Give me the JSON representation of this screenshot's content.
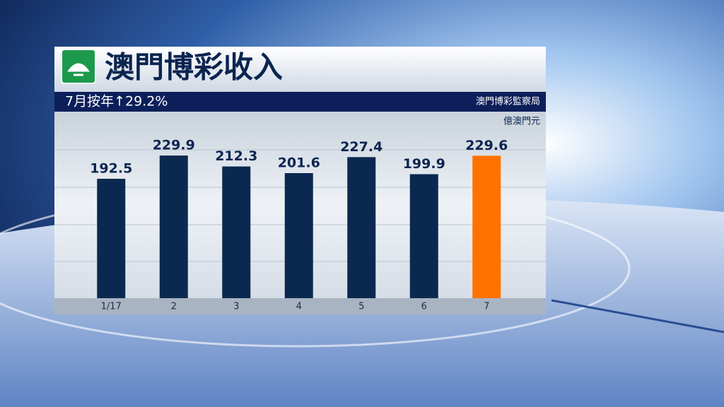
{
  "chart_data": {
    "type": "bar",
    "title": "澳門博彩收入",
    "subtitle": "7月按年↑29.2%",
    "source": "澳門博彩監察局",
    "unit": "億澳門元",
    "categories": [
      "1/17",
      "2",
      "3",
      "4",
      "5",
      "6",
      "7"
    ],
    "values": [
      192.5,
      229.9,
      212.3,
      201.6,
      227.4,
      199.9,
      229.6
    ],
    "colors": [
      "#0b2950",
      "#0b2950",
      "#0b2950",
      "#0b2950",
      "#0b2950",
      "#0b2950",
      "#ff7200"
    ]
  }
}
